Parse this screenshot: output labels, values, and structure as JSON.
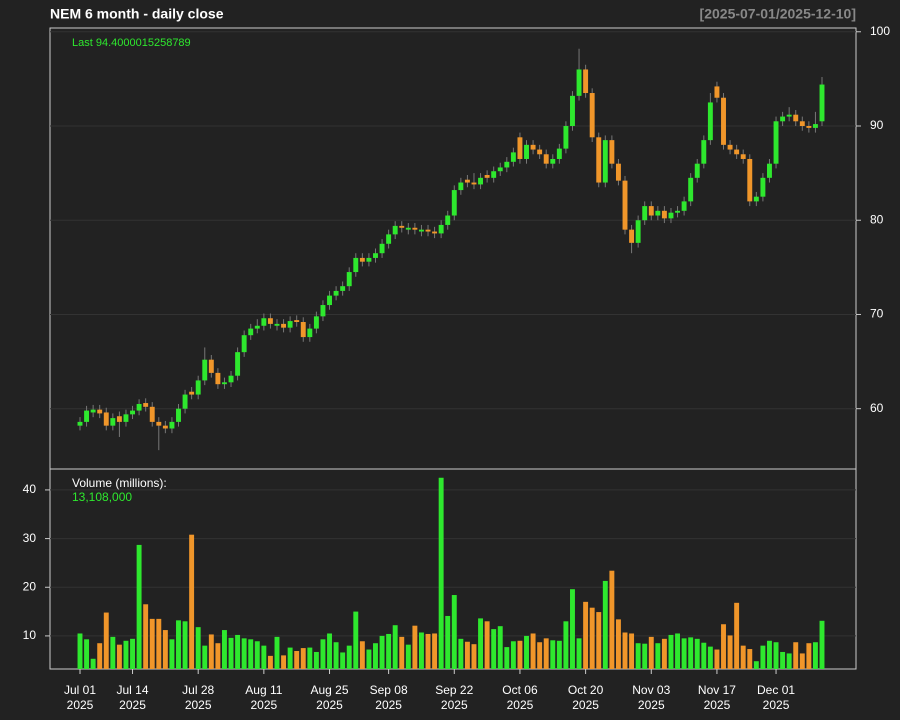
{
  "chart_data": {
    "type": "candlestick",
    "title": "NEM  6 month - daily close",
    "range_label": "[2025-07-01/2025-12-10]",
    "last_label": "Last 94.4000015258789",
    "volume_title": "Volume (millions):",
    "volume_last_label": "13,108,000",
    "up_color": "#2ee82e",
    "down_color": "#f0962a",
    "open": [
      58.2,
      58.6,
      59.6,
      59.9,
      59.6,
      58.2,
      59.2,
      58.6,
      59.4,
      59.8,
      60.6,
      60.2,
      58.6,
      58.2,
      57.9,
      58.6,
      60.0,
      61.8,
      61.5,
      63.0,
      65.2,
      63.8,
      62.6,
      62.8,
      63.5,
      66.0,
      67.8,
      68.5,
      68.8,
      69.6,
      68.8,
      69.0,
      68.6,
      69.4,
      69.2,
      67.6,
      68.5,
      69.8,
      71.0,
      72.0,
      72.5,
      73.0,
      74.5,
      76.0,
      75.6,
      76.0,
      76.5,
      77.5,
      78.5,
      79.4,
      79.0,
      79.2,
      78.8,
      79.0,
      78.8,
      78.6,
      79.5,
      80.5,
      83.2,
      84.3,
      84.0,
      83.8,
      84.8,
      84.5,
      85.2,
      85.6,
      86.2,
      88.8,
      86.5,
      88.0,
      87.5,
      87.0,
      86.0,
      86.5,
      87.6,
      90.0,
      93.2,
      96.0,
      93.5,
      88.8,
      84.0,
      88.5,
      86.0,
      84.2,
      79.0,
      77.6,
      80.0,
      81.5,
      80.5,
      81.0,
      80.2,
      80.8,
      81.0,
      82.0,
      84.5,
      86.0,
      88.5,
      94.2,
      93.0,
      88.0,
      87.5,
      87.0,
      86.5,
      82.0,
      82.5,
      84.5,
      86.0,
      90.5,
      91.0,
      91.2,
      90.5,
      90.0,
      89.8,
      90.5
    ],
    "high": [
      59.1,
      60.3,
      60.4,
      60.4,
      60.1,
      59.5,
      59.7,
      59.9,
      60.3,
      61.0,
      61.1,
      60.7,
      59.1,
      58.7,
      59.1,
      60.5,
      62.0,
      62.3,
      63.5,
      66.5,
      65.7,
      64.3,
      63.3,
      64.0,
      66.5,
      68.3,
      69.0,
      69.5,
      70.1,
      70.1,
      69.5,
      69.5,
      69.8,
      69.9,
      69.7,
      69.0,
      70.3,
      71.5,
      72.5,
      73.0,
      73.5,
      75.0,
      76.5,
      76.5,
      76.5,
      77.0,
      78.0,
      79.0,
      79.9,
      79.9,
      79.7,
      79.7,
      79.5,
      79.5,
      79.3,
      80.0,
      81.0,
      83.7,
      84.5,
      84.8,
      85.0,
      85.0,
      85.3,
      85.7,
      86.1,
      86.7,
      87.7,
      89.3,
      88.5,
      88.5,
      88.0,
      87.5,
      87.0,
      88.1,
      90.5,
      93.7,
      98.2,
      96.5,
      94.0,
      89.3,
      89.0,
      89.0,
      86.5,
      84.7,
      79.5,
      80.5,
      82.0,
      82.0,
      81.5,
      81.5,
      81.3,
      81.5,
      82.5,
      85.0,
      86.5,
      89.0,
      93.5,
      94.7,
      93.5,
      88.5,
      88.0,
      87.5,
      87.0,
      83.0,
      85.0,
      86.5,
      91.0,
      91.5,
      92.0,
      91.7,
      91.0,
      90.5,
      91.5,
      95.2
    ],
    "low": [
      57.7,
      58.1,
      59.1,
      59.0,
      57.7,
      57.7,
      57.0,
      58.1,
      58.9,
      59.3,
      59.7,
      58.1,
      55.6,
      57.4,
      57.4,
      58.1,
      59.5,
      61.0,
      61.0,
      62.5,
      63.3,
      62.1,
      62.1,
      62.3,
      63.0,
      65.5,
      67.3,
      68.0,
      68.3,
      68.5,
      68.3,
      68.1,
      68.1,
      68.7,
      67.1,
      67.1,
      68.0,
      69.3,
      70.5,
      71.5,
      72.0,
      72.5,
      74.0,
      75.1,
      75.1,
      75.5,
      76.0,
      77.0,
      78.0,
      78.7,
      78.5,
      78.5,
      78.3,
      78.3,
      78.1,
      78.1,
      79.0,
      80.0,
      82.7,
      83.5,
      83.3,
      83.3,
      84.0,
      84.0,
      84.7,
      85.1,
      85.7,
      86.0,
      86.0,
      87.0,
      86.5,
      85.5,
      85.5,
      86.0,
      87.1,
      89.5,
      92.7,
      93.0,
      88.3,
      83.5,
      83.5,
      85.5,
      83.7,
      78.5,
      76.5,
      77.1,
      79.5,
      80.0,
      80.0,
      79.7,
      79.7,
      80.3,
      80.5,
      81.5,
      84.0,
      85.5,
      88.0,
      92.5,
      87.5,
      87.0,
      86.5,
      86.0,
      81.5,
      81.5,
      82.0,
      84.0,
      85.5,
      90.0,
      90.5,
      90.0,
      89.5,
      89.3,
      89.3,
      90.0
    ],
    "close": [
      58.6,
      59.8,
      59.9,
      59.5,
      58.2,
      59.0,
      58.6,
      59.4,
      59.8,
      60.5,
      60.2,
      58.6,
      58.2,
      57.9,
      58.6,
      60.0,
      61.5,
      61.5,
      63.0,
      65.2,
      63.8,
      62.6,
      62.8,
      63.5,
      66.0,
      67.8,
      68.5,
      68.8,
      69.6,
      69.0,
      69.0,
      68.6,
      69.3,
      69.2,
      67.6,
      68.5,
      69.8,
      71.0,
      72.0,
      72.5,
      73.0,
      74.5,
      76.0,
      75.6,
      76.0,
      76.5,
      77.5,
      78.5,
      79.4,
      79.2,
      79.2,
      79.0,
      79.0,
      78.8,
      78.6,
      79.5,
      80.5,
      83.2,
      84.0,
      84.0,
      83.8,
      84.5,
      84.5,
      85.2,
      85.6,
      86.2,
      87.2,
      86.5,
      88.0,
      87.5,
      87.0,
      86.0,
      86.5,
      87.6,
      90.0,
      93.2,
      96.0,
      93.5,
      88.8,
      84.0,
      88.5,
      86.0,
      84.2,
      79.0,
      77.6,
      80.0,
      81.5,
      80.5,
      81.0,
      80.2,
      80.8,
      81.0,
      82.0,
      84.5,
      86.0,
      88.5,
      92.5,
      93.0,
      88.0,
      87.5,
      87.0,
      86.5,
      82.0,
      82.5,
      84.5,
      86.0,
      90.5,
      91.0,
      91.2,
      90.5,
      90.0,
      89.8,
      90.2,
      94.4
    ],
    "volume": [
      10.5,
      9.3,
      5.3,
      8.5,
      14.8,
      9.8,
      8.2,
      9.0,
      9.4,
      28.7,
      16.5,
      13.5,
      13.5,
      11.2,
      9.3,
      13.2,
      13.0,
      30.8,
      11.8,
      8.0,
      10.3,
      8.5,
      11.2,
      9.6,
      10.2,
      9.5,
      9.3,
      8.9,
      8.0,
      5.9,
      9.8,
      6.0,
      7.6,
      6.9,
      7.5,
      7.6,
      6.7,
      9.3,
      10.5,
      8.7,
      6.6,
      8.0,
      15.0,
      8.9,
      7.2,
      8.5,
      10.0,
      10.4,
      12.2,
      9.8,
      8.2,
      12.1,
      10.7,
      10.4,
      10.5,
      42.5,
      14.1,
      18.4,
      9.4,
      8.8,
      8.3,
      13.6,
      13.0,
      11.4,
      12.0,
      7.7,
      8.9,
      9.0,
      10.0,
      10.5,
      8.7,
      9.5,
      9.1,
      9.0,
      13.0,
      19.6,
      9.5,
      17.0,
      15.8,
      14.9,
      21.3,
      23.4,
      13.4,
      10.7,
      10.5,
      8.5,
      8.4,
      9.8,
      8.5,
      9.4,
      10.2,
      10.5,
      9.5,
      9.7,
      9.4,
      8.6,
      7.8,
      7.2,
      12.4,
      10.1,
      16.8,
      8.0,
      7.3,
      4.8,
      8.0,
      9.0,
      8.7,
      6.7,
      6.4,
      8.7,
      6.4,
      8.5,
      8.7,
      13.108
    ],
    "ylim": [
      53.6,
      100.4
    ],
    "yticks": [
      60,
      70,
      80,
      90,
      100
    ],
    "volume_ylim": [
      3.2,
      44.3
    ],
    "volume_yticks": [
      10,
      20,
      30,
      40
    ],
    "xticks": [
      {
        "value": 0,
        "label": "Jul 01",
        "year": "2025"
      },
      {
        "value": 8,
        "label": "Jul 14",
        "year": "2025"
      },
      {
        "value": 18,
        "label": "Jul 28",
        "year": "2025"
      },
      {
        "value": 28,
        "label": "Aug 11",
        "year": "2025"
      },
      {
        "value": 38,
        "label": "Aug 25",
        "year": "2025"
      },
      {
        "value": 47,
        "label": "Sep 08",
        "year": "2025"
      },
      {
        "value": 57,
        "label": "Sep 22",
        "year": "2025"
      },
      {
        "value": 67,
        "label": "Oct 06",
        "year": "2025"
      },
      {
        "value": 77,
        "label": "Oct 20",
        "year": "2025"
      },
      {
        "value": 87,
        "label": "Nov 03",
        "year": "2025"
      },
      {
        "value": 97,
        "label": "Nov 17",
        "year": "2025"
      },
      {
        "value": 106,
        "label": "Dec 01",
        "year": "2025"
      }
    ],
    "grid": true
  }
}
